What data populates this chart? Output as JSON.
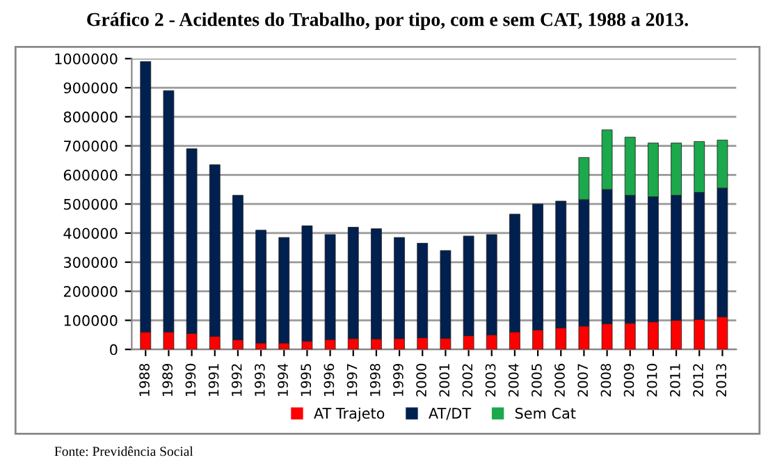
{
  "chart_data": {
    "type": "bar",
    "title": "Gráfico 2 - Acidentes do Trabalho, por tipo, com e sem CAT, 1988 a 2013.",
    "categories": [
      "1988",
      "1989",
      "1990",
      "1991",
      "1992",
      "1993",
      "1994",
      "1995",
      "1996",
      "1997",
      "1998",
      "1999",
      "2000",
      "2001",
      "2002",
      "2003",
      "2004",
      "2005",
      "2006",
      "2007",
      "2008",
      "2009",
      "2010",
      "2011",
      "2012",
      "2013"
    ],
    "stacked": true,
    "series": [
      {
        "name": "AT Trajeto",
        "color": "#ff0000",
        "values": [
          60000,
          60000,
          55000,
          45000,
          33000,
          22000,
          22000,
          28000,
          34000,
          37000,
          36000,
          37000,
          40000,
          38000,
          47000,
          50000,
          60000,
          67000,
          74000,
          80000,
          88000,
          90000,
          95000,
          100000,
          103000,
          112000
        ]
      },
      {
        "name": "AT/DT",
        "color": "#002050",
        "values": [
          930000,
          830000,
          635000,
          590000,
          497000,
          388000,
          363000,
          397000,
          361000,
          383000,
          379000,
          348000,
          325000,
          302000,
          343000,
          345000,
          405000,
          433000,
          436000,
          435000,
          462000,
          440000,
          430000,
          430000,
          437000,
          443000
        ]
      },
      {
        "name": "Sem Cat",
        "color": "#1ca84c",
        "values": [
          null,
          null,
          null,
          null,
          null,
          null,
          null,
          null,
          null,
          null,
          null,
          null,
          null,
          null,
          null,
          null,
          null,
          null,
          null,
          145000,
          205000,
          200000,
          185000,
          180000,
          175000,
          165000
        ]
      }
    ],
    "ylim": [
      0,
      1000000
    ],
    "yticks": [
      0,
      100000,
      200000,
      300000,
      400000,
      500000,
      600000,
      700000,
      800000,
      900000,
      1000000
    ],
    "grid": "y",
    "legend": "bottom",
    "annotations": [
      "Fonte: Previdência Social"
    ]
  }
}
